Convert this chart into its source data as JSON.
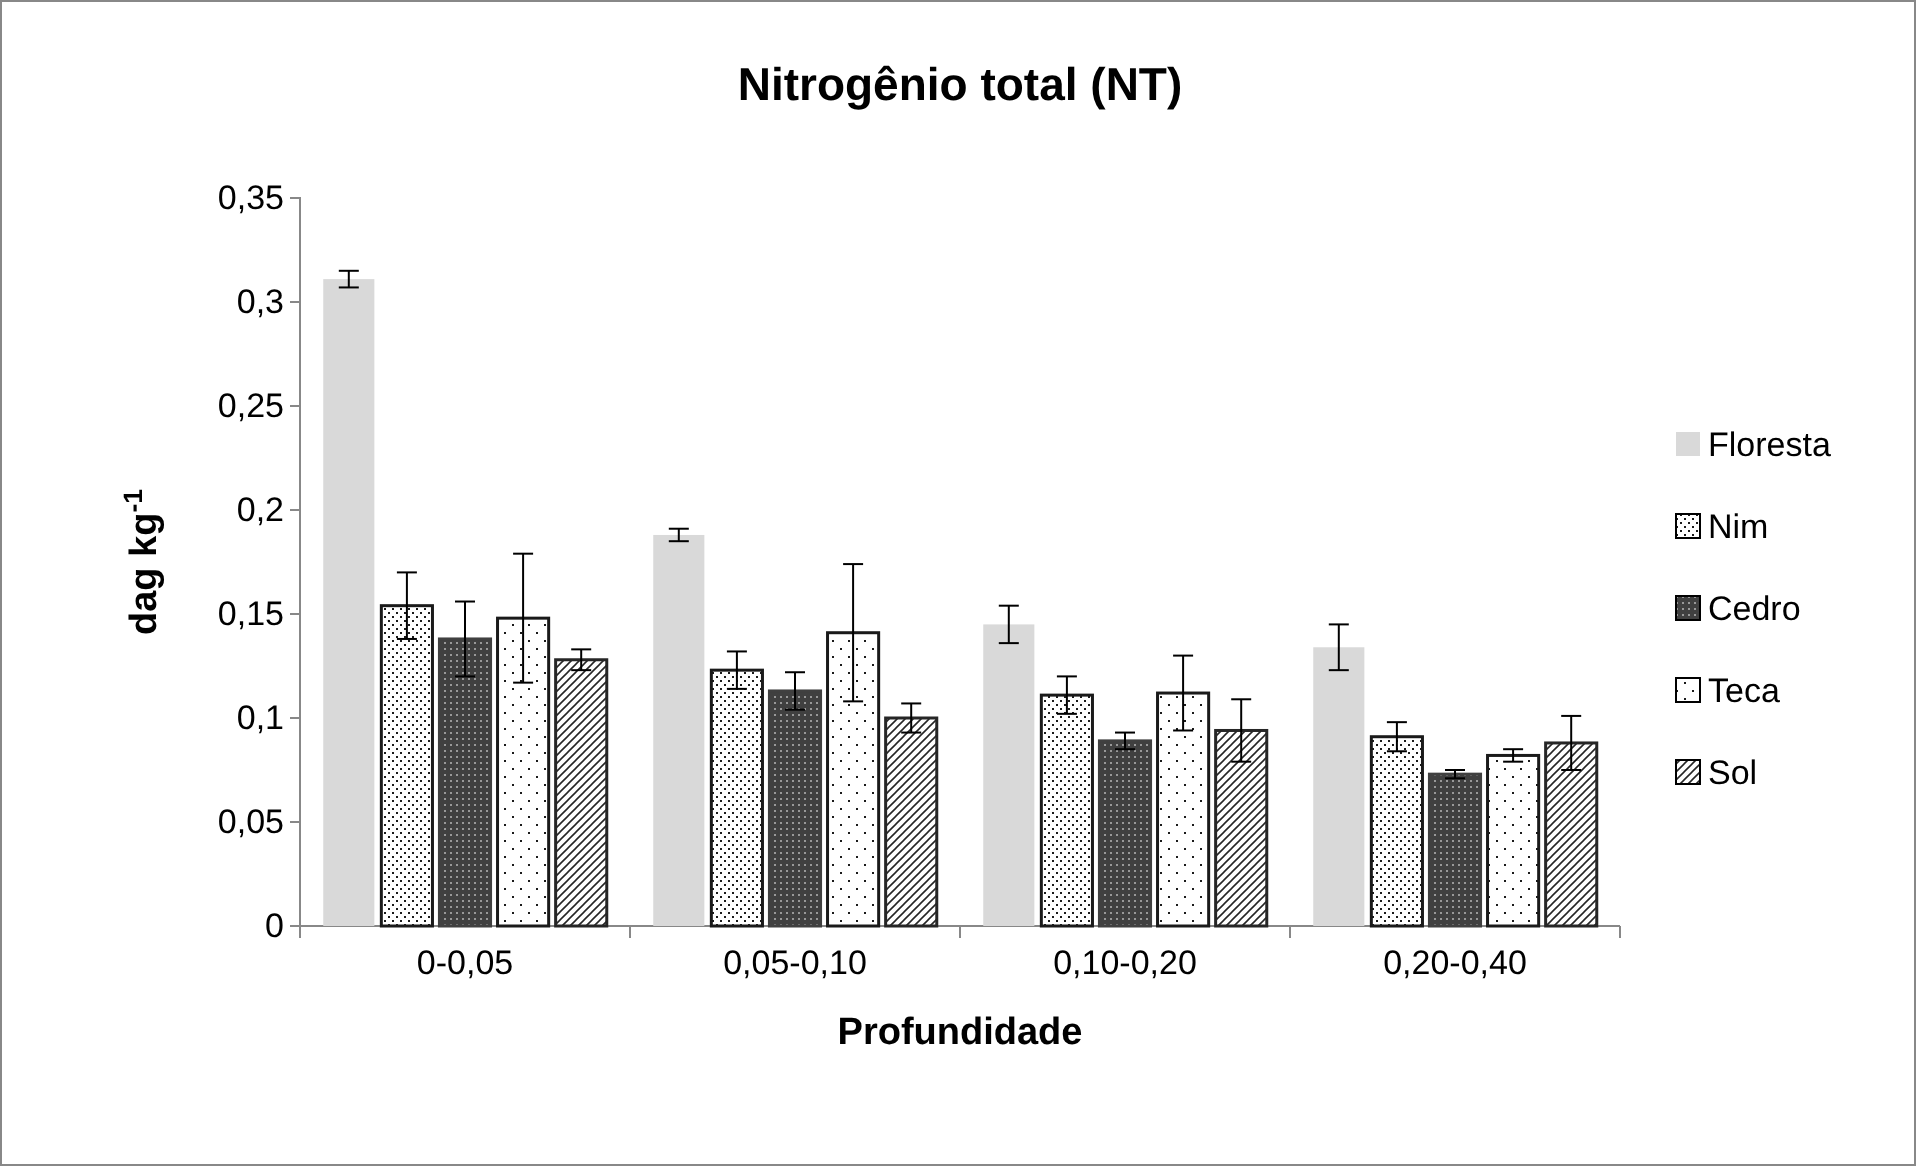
{
  "chart_data": {
    "type": "bar",
    "title": "Nitrogênio total (NT)",
    "xlabel": "Profundidade",
    "ylabel": "dag kg$^{-1}$",
    "categories": [
      "0-0,05",
      "0,05-0,10",
      "0,10-0,20",
      "0,20-0,40"
    ],
    "ylim": [
      0,
      0.35
    ],
    "yticks": [
      0,
      {
        "value": 0.05,
        "label": "0,05"
      },
      {
        "value": 0.1,
        "label": "0,1"
      },
      {
        "value": 0.15,
        "label": "0,15"
      },
      {
        "value": 0.2,
        "label": "0,2"
      },
      {
        "value": 0.25,
        "label": "0,25"
      },
      {
        "value": 0.3,
        "label": "0,3"
      },
      {
        "value": 0.35,
        "label": "0,35"
      }
    ],
    "legend": "right",
    "grid": false,
    "series": [
      {
        "name": "Floresta",
        "color": "#d9d9d9",
        "values": [
          0.311,
          0.188,
          0.145,
          0.134
        ],
        "errors": [
          0.004,
          0.003,
          0.009,
          0.011
        ]
      },
      {
        "name": "Nim",
        "color": "#1a1a1a",
        "values": [
          0.154,
          0.123,
          0.111,
          0.091
        ],
        "errors": [
          0.016,
          0.009,
          0.009,
          0.007
        ]
      },
      {
        "name": "Cedro",
        "color": "#404040",
        "values": [
          0.138,
          0.113,
          0.089,
          0.073
        ],
        "errors": [
          0.018,
          0.009,
          0.004,
          0.002
        ]
      },
      {
        "name": "Teca",
        "color": "#1a1a1a",
        "values": [
          0.148,
          0.141,
          0.112,
          0.082
        ],
        "errors": [
          0.031,
          0.033,
          0.018,
          0.003
        ]
      },
      {
        "name": "Sol",
        "color": "#262626",
        "values": [
          0.128,
          0.1,
          0.094,
          0.088
        ],
        "errors": [
          0.005,
          0.007,
          0.015,
          0.013
        ]
      }
    ]
  }
}
